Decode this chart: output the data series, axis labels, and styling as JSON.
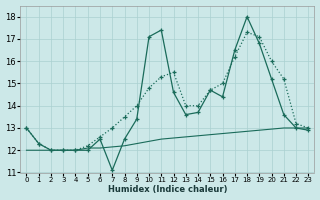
{
  "xlabel": "Humidex (Indice chaleur)",
  "xlim": [
    -0.5,
    23.5
  ],
  "ylim": [
    11,
    18.5
  ],
  "yticks": [
    11,
    12,
    13,
    14,
    15,
    16,
    17,
    18
  ],
  "xticks": [
    0,
    1,
    2,
    3,
    4,
    5,
    6,
    7,
    8,
    9,
    10,
    11,
    12,
    13,
    14,
    15,
    16,
    17,
    18,
    19,
    20,
    21,
    22,
    23
  ],
  "bg_color": "#cce8e8",
  "grid_color": "#aad0d0",
  "line_color": "#1a6b5a",
  "line1_x": [
    0,
    1,
    2,
    3,
    4,
    5,
    6,
    7,
    8,
    9,
    10,
    11,
    12,
    13,
    14,
    15,
    16,
    17,
    18,
    19,
    20,
    21,
    22,
    23
  ],
  "line1_y": [
    13.0,
    12.3,
    12.0,
    12.0,
    12.0,
    12.2,
    12.6,
    13.0,
    13.5,
    14.0,
    14.8,
    15.3,
    15.5,
    14.0,
    14.0,
    14.7,
    15.0,
    16.2,
    17.3,
    17.1,
    16.0,
    15.2,
    13.2,
    13.0
  ],
  "line2_x": [
    0,
    1,
    2,
    3,
    4,
    5,
    6,
    7,
    8,
    9,
    10,
    11,
    12,
    13,
    14,
    15,
    16,
    17,
    18,
    19,
    20,
    21,
    22,
    23
  ],
  "line2_y": [
    13.0,
    12.3,
    12.0,
    12.0,
    12.0,
    12.0,
    12.5,
    11.1,
    12.5,
    13.4,
    17.1,
    17.4,
    14.6,
    13.6,
    13.7,
    14.7,
    14.4,
    16.5,
    18.0,
    16.8,
    15.2,
    13.6,
    13.0,
    12.9
  ],
  "line3_x": [
    0,
    1,
    2,
    3,
    4,
    5,
    6,
    7,
    8,
    9,
    10,
    11,
    12,
    13,
    14,
    15,
    16,
    17,
    18,
    19,
    20,
    21,
    22,
    23
  ],
  "line3_y": [
    12.0,
    12.0,
    12.0,
    12.0,
    12.0,
    12.1,
    12.1,
    12.15,
    12.2,
    12.3,
    12.4,
    12.5,
    12.55,
    12.6,
    12.65,
    12.7,
    12.75,
    12.8,
    12.85,
    12.9,
    12.95,
    13.0,
    13.0,
    13.0
  ]
}
